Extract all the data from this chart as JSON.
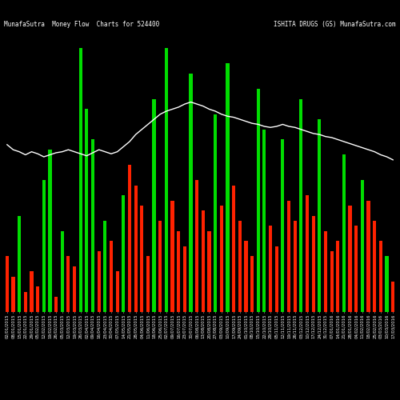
{
  "title_left": "MunafaSutra  Money Flow  Charts for 524400",
  "title_right": "ISHITA DRUGS (GS) MunafaSutra.com",
  "background_color": "#000000",
  "bar_colors_pattern": [
    "red",
    "red",
    "green",
    "red",
    "red",
    "red",
    "green",
    "green",
    "red",
    "green",
    "red",
    "red",
    "green",
    "green",
    "green",
    "red",
    "green",
    "red",
    "red",
    "green",
    "red",
    "red",
    "red",
    "red",
    "green",
    "red",
    "green",
    "red",
    "red",
    "red",
    "green",
    "red",
    "red",
    "red",
    "green",
    "red",
    "green",
    "red",
    "red",
    "red",
    "red",
    "green",
    "green",
    "red",
    "red",
    "green",
    "red",
    "red",
    "green",
    "red",
    "red",
    "green",
    "red",
    "red",
    "red",
    "green",
    "red",
    "red",
    "green",
    "red",
    "red",
    "red",
    "green",
    "red"
  ],
  "bar_heights": [
    55,
    35,
    95,
    20,
    40,
    25,
    130,
    160,
    15,
    80,
    55,
    45,
    260,
    200,
    170,
    60,
    90,
    70,
    40,
    115,
    145,
    125,
    105,
    55,
    210,
    90,
    260,
    110,
    80,
    65,
    235,
    130,
    100,
    80,
    195,
    105,
    245,
    125,
    90,
    70,
    55,
    220,
    180,
    85,
    65,
    170,
    110,
    90,
    210,
    115,
    95,
    190,
    80,
    60,
    70,
    155,
    105,
    85,
    130,
    110,
    90,
    70,
    55,
    30
  ],
  "line_color": "#ffffff",
  "line_values": [
    165,
    160,
    158,
    155,
    158,
    156,
    153,
    155,
    157,
    158,
    160,
    158,
    156,
    154,
    157,
    160,
    158,
    156,
    158,
    163,
    168,
    175,
    180,
    185,
    190,
    195,
    198,
    200,
    202,
    205,
    207,
    205,
    203,
    200,
    198,
    195,
    193,
    192,
    190,
    188,
    186,
    185,
    183,
    182,
    183,
    185,
    183,
    182,
    180,
    178,
    176,
    175,
    173,
    172,
    170,
    168,
    166,
    164,
    162,
    160,
    158,
    155,
    153,
    150
  ],
  "dates": [
    "02/01/2015",
    "08/01/2015",
    "15/01/2015",
    "22/01/2015",
    "29/01/2015",
    "05/02/2015",
    "12/02/2015",
    "19/02/2015",
    "26/02/2015",
    "05/03/2015",
    "12/03/2015",
    "19/03/2015",
    "26/03/2015",
    "02/04/2015",
    "09/04/2015",
    "16/04/2015",
    "23/04/2015",
    "30/04/2015",
    "07/05/2015",
    "14/05/2015",
    "21/05/2015",
    "28/05/2015",
    "04/06/2015",
    "11/06/2015",
    "18/06/2015",
    "25/06/2015",
    "02/07/2015",
    "09/07/2015",
    "16/07/2015",
    "23/07/2015",
    "30/07/2015",
    "06/08/2015",
    "13/08/2015",
    "20/08/2015",
    "27/08/2015",
    "03/09/2015",
    "10/09/2015",
    "17/09/2015",
    "24/09/2015",
    "01/10/2015",
    "08/10/2015",
    "15/10/2015",
    "22/10/2015",
    "29/10/2015",
    "05/11/2015",
    "12/11/2015",
    "19/11/2015",
    "26/11/2015",
    "03/12/2015",
    "10/12/2015",
    "17/12/2015",
    "24/12/2015",
    "31/12/2015",
    "07/01/2016",
    "14/01/2016",
    "21/01/2016",
    "28/01/2016",
    "04/02/2016",
    "11/02/2016",
    "18/02/2016",
    "25/02/2016",
    "03/03/2016",
    "10/03/2016",
    "17/03/2016"
  ],
  "ylim_max": 280,
  "title_fontsize": 5.5,
  "tick_fontsize": 3.8,
  "bar_width": 0.55
}
